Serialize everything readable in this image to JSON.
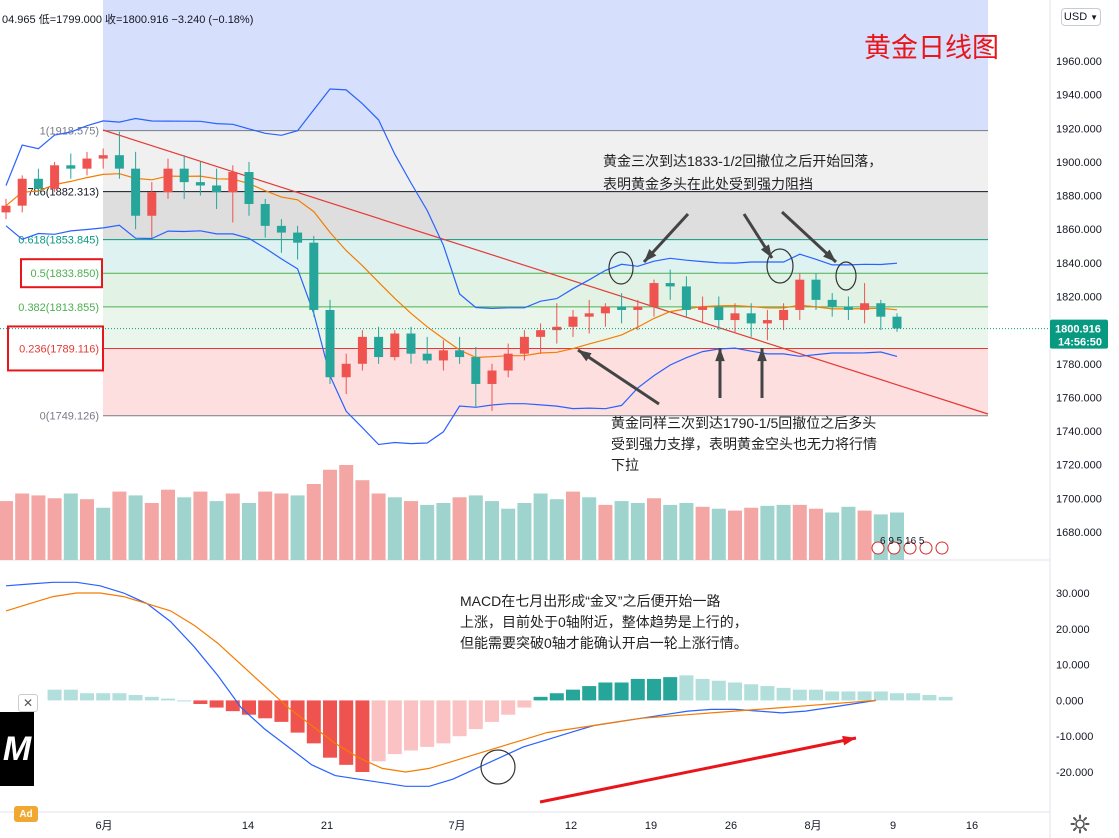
{
  "header": {
    "ohlc_text": "04.965 低=1799.000 收=1800.916 −3.240 (−0.18%)",
    "currency_label": "USD",
    "chart_title": "黄金日线图"
  },
  "price_axis": {
    "ticks": [
      "1960.000",
      "1940.000",
      "1920.000",
      "1900.000",
      "1880.000",
      "1860.000",
      "1840.000",
      "1820.000",
      "1800.000",
      "1780.000",
      "1760.000",
      "1740.000",
      "1720.000",
      "1700.000",
      "1680.000"
    ],
    "last_price": "1800.916",
    "countdown": "14:56:50"
  },
  "macd_axis": {
    "ticks": [
      "30.000",
      "20.000",
      "10.000",
      "0.000",
      "-10.000",
      "-20.000"
    ]
  },
  "time_axis": {
    "labels": [
      "6月",
      "14",
      "21",
      "7月",
      "12",
      "19",
      "26",
      "8月",
      "9",
      "16"
    ]
  },
  "fib_levels": [
    {
      "label": "1(1918.575)",
      "price": 1918.575,
      "color": "#787b86"
    },
    {
      "label": "0.786(1882.313)",
      "price": 1882.313,
      "color": "#131722"
    },
    {
      "label": "0.618(1853.845)",
      "price": 1853.845,
      "color": "#089981"
    },
    {
      "label": "0.5(1833.850)",
      "price": 1833.85,
      "color": "#4caf50"
    },
    {
      "label": "0.382(1813.855)",
      "price": 1813.855,
      "color": "#4caf50"
    },
    {
      "label": "0.236(1789.116)",
      "price": 1789.116,
      "color": "#e53935"
    },
    {
      "label": "0(1749.126)",
      "price": 1749.126,
      "color": "#787b86"
    }
  ],
  "annotations": {
    "top": [
      "黄金三次到达1833-1/2回撤位之后开始回落，",
      "表明黄金多头在此处受到强力阻挡"
    ],
    "bottom": [
      "黄金同样三次到达1790-1/5回撤位之后多头",
      "受到强力支撑，表明黄金空头也无力将行情",
      "下拉"
    ],
    "macd": [
      "MACD在七月出形成“金叉”之后便开始一路",
      "上涨，目前处于0轴附近，整体趋势是上行的，",
      "但能需要突破0轴才能确认开启一轮上涨行情。"
    ]
  },
  "events_text": "6 9 5 16 5",
  "colors": {
    "up": "#26a69a",
    "down": "#ef5350",
    "bollinger": "#2962ff",
    "ma": "#f57c00",
    "annotation_red": "#e8161b"
  },
  "ad": {
    "badge": "Ad",
    "close": "✕",
    "logo": "M"
  },
  "chart_data": {
    "type": "candlestick",
    "x": [
      "6月初",
      "6月",
      "6月",
      "6月",
      "6月",
      "6月",
      "6月",
      "6月",
      "6月",
      "6月",
      "6月中",
      "14",
      "14",
      "14",
      "14",
      "14",
      "21",
      "21",
      "21",
      "21",
      "21",
      "6月末",
      "6月末",
      "6月末",
      "6月末",
      "7月",
      "7月",
      "7月",
      "7月",
      "7月",
      "7月",
      "7月",
      "7月",
      "7月",
      "7月",
      "12",
      "12",
      "12",
      "12",
      "12",
      "19",
      "19",
      "19",
      "19",
      "19",
      "26",
      "26",
      "26",
      "26",
      "26",
      "8月",
      "8月",
      "8月",
      "8月",
      "8月",
      "8月"
    ],
    "candles": [
      [
        1870,
        1878,
        1866,
        1874
      ],
      [
        1874,
        1892,
        1870,
        1890
      ],
      [
        1890,
        1896,
        1880,
        1884
      ],
      [
        1884,
        1900,
        1882,
        1898
      ],
      [
        1898,
        1905,
        1890,
        1896
      ],
      [
        1896,
        1906,
        1892,
        1902
      ],
      [
        1902,
        1908,
        1896,
        1904
      ],
      [
        1904,
        1918,
        1890,
        1896
      ],
      [
        1896,
        1906,
        1860,
        1868
      ],
      [
        1868,
        1888,
        1855,
        1882
      ],
      [
        1882,
        1902,
        1878,
        1896
      ],
      [
        1896,
        1904,
        1878,
        1888
      ],
      [
        1888,
        1900,
        1880,
        1886
      ],
      [
        1886,
        1896,
        1872,
        1882
      ],
      [
        1882,
        1898,
        1864,
        1894
      ],
      [
        1894,
        1900,
        1868,
        1875
      ],
      [
        1875,
        1878,
        1855,
        1862
      ],
      [
        1862,
        1866,
        1846,
        1858
      ],
      [
        1858,
        1862,
        1842,
        1852
      ],
      [
        1852,
        1856,
        1808,
        1812
      ],
      [
        1812,
        1818,
        1768,
        1772
      ],
      [
        1772,
        1786,
        1762,
        1780
      ],
      [
        1780,
        1800,
        1776,
        1796
      ],
      [
        1796,
        1802,
        1780,
        1784
      ],
      [
        1784,
        1800,
        1782,
        1798
      ],
      [
        1798,
        1802,
        1780,
        1786
      ],
      [
        1786,
        1796,
        1780,
        1782
      ],
      [
        1782,
        1794,
        1776,
        1788
      ],
      [
        1788,
        1796,
        1780,
        1784
      ],
      [
        1784,
        1790,
        1754,
        1768
      ],
      [
        1768,
        1780,
        1752,
        1776
      ],
      [
        1776,
        1792,
        1772,
        1786
      ],
      [
        1786,
        1800,
        1782,
        1796
      ],
      [
        1796,
        1804,
        1786,
        1800
      ],
      [
        1800,
        1816,
        1792,
        1802
      ],
      [
        1802,
        1812,
        1796,
        1808
      ],
      [
        1808,
        1818,
        1798,
        1810
      ],
      [
        1810,
        1816,
        1802,
        1814
      ],
      [
        1814,
        1822,
        1804,
        1812
      ],
      [
        1812,
        1818,
        1800,
        1814
      ],
      [
        1814,
        1830,
        1808,
        1828
      ],
      [
        1828,
        1836,
        1818,
        1826
      ],
      [
        1826,
        1832,
        1808,
        1812
      ],
      [
        1812,
        1820,
        1804,
        1814
      ],
      [
        1814,
        1820,
        1800,
        1806
      ],
      [
        1806,
        1816,
        1798,
        1810
      ],
      [
        1810,
        1816,
        1796,
        1804
      ],
      [
        1804,
        1812,
        1794,
        1806
      ],
      [
        1806,
        1816,
        1800,
        1812
      ],
      [
        1812,
        1834,
        1806,
        1830
      ],
      [
        1830,
        1834,
        1812,
        1818
      ],
      [
        1818,
        1822,
        1808,
        1814
      ],
      [
        1814,
        1820,
        1806,
        1812
      ],
      [
        1812,
        1828,
        1804,
        1816
      ],
      [
        1816,
        1818,
        1800,
        1808
      ],
      [
        1808,
        1810,
        1799,
        1801
      ]
    ],
    "volume": [
      [
        62,
        1
      ],
      [
        70,
        1
      ],
      [
        68,
        1
      ],
      [
        65,
        1
      ],
      [
        70,
        0
      ],
      [
        64,
        1
      ],
      [
        55,
        0
      ],
      [
        72,
        1
      ],
      [
        68,
        0
      ],
      [
        60,
        1
      ],
      [
        74,
        1
      ],
      [
        66,
        0
      ],
      [
        72,
        1
      ],
      [
        62,
        0
      ],
      [
        70,
        1
      ],
      [
        60,
        0
      ],
      [
        72,
        1
      ],
      [
        70,
        1
      ],
      [
        68,
        0
      ],
      [
        80,
        1
      ],
      [
        95,
        1
      ],
      [
        100,
        1
      ],
      [
        84,
        1
      ],
      [
        70,
        1
      ],
      [
        66,
        0
      ],
      [
        62,
        1
      ],
      [
        58,
        0
      ],
      [
        60,
        0
      ],
      [
        66,
        1
      ],
      [
        68,
        0
      ],
      [
        62,
        0
      ],
      [
        54,
        0
      ],
      [
        60,
        0
      ],
      [
        70,
        0
      ],
      [
        64,
        0
      ],
      [
        72,
        1
      ],
      [
        66,
        0
      ],
      [
        58,
        1
      ],
      [
        62,
        0
      ],
      [
        60,
        0
      ],
      [
        65,
        1
      ],
      [
        58,
        0
      ],
      [
        60,
        0
      ],
      [
        56,
        1
      ],
      [
        54,
        0
      ],
      [
        52,
        1
      ],
      [
        55,
        1
      ],
      [
        57,
        0
      ],
      [
        58,
        0
      ],
      [
        58,
        1
      ],
      [
        54,
        1
      ],
      [
        50,
        0
      ],
      [
        56,
        0
      ],
      [
        52,
        1
      ],
      [
        48,
        0
      ],
      [
        50,
        0
      ]
    ],
    "macd_hist": [
      3,
      3,
      2,
      2,
      2,
      1.5,
      1,
      0.5,
      0,
      -1,
      -2,
      -3,
      -4,
      -5,
      -6,
      -9,
      -12,
      -16,
      -18,
      -20,
      -17,
      -15,
      -14,
      -13,
      -12,
      -10,
      -8,
      -6,
      -4,
      -2,
      1,
      2,
      3,
      4,
      5,
      5,
      6,
      6,
      6.5,
      7,
      6,
      5.5,
      5,
      4.5,
      4,
      3.5,
      3,
      3,
      2.5,
      2.5,
      2.5,
      2.5,
      2,
      2,
      1.5,
      1
    ],
    "macd_line": [
      32,
      32.5,
      33,
      33,
      32,
      30,
      27,
      22,
      15,
      7,
      -2,
      -8,
      -13,
      -18,
      -21,
      -22,
      -23,
      -24,
      -24,
      -22,
      -19,
      -16,
      -13,
      -11,
      -9,
      -7,
      -6,
      -5,
      -4,
      -3,
      -2.5,
      -2.5,
      -3,
      -3.5,
      -3,
      -2,
      -1,
      0
    ],
    "signal_line": [
      25,
      27,
      29,
      30,
      30,
      29,
      27,
      25,
      21,
      16,
      10,
      4,
      -2,
      -7,
      -12,
      -16,
      -19,
      -20,
      -19,
      -17,
      -15,
      -13,
      -11,
      -9,
      -8,
      -7,
      -6,
      -5,
      -4.5,
      -4,
      -3.5,
      -3,
      -2.5,
      -2,
      -1.5,
      -1,
      -0.5,
      0
    ],
    "ylim": [
      1665,
      1968
    ],
    "macd_ylim": [
      -27,
      34
    ],
    "grid": false
  }
}
